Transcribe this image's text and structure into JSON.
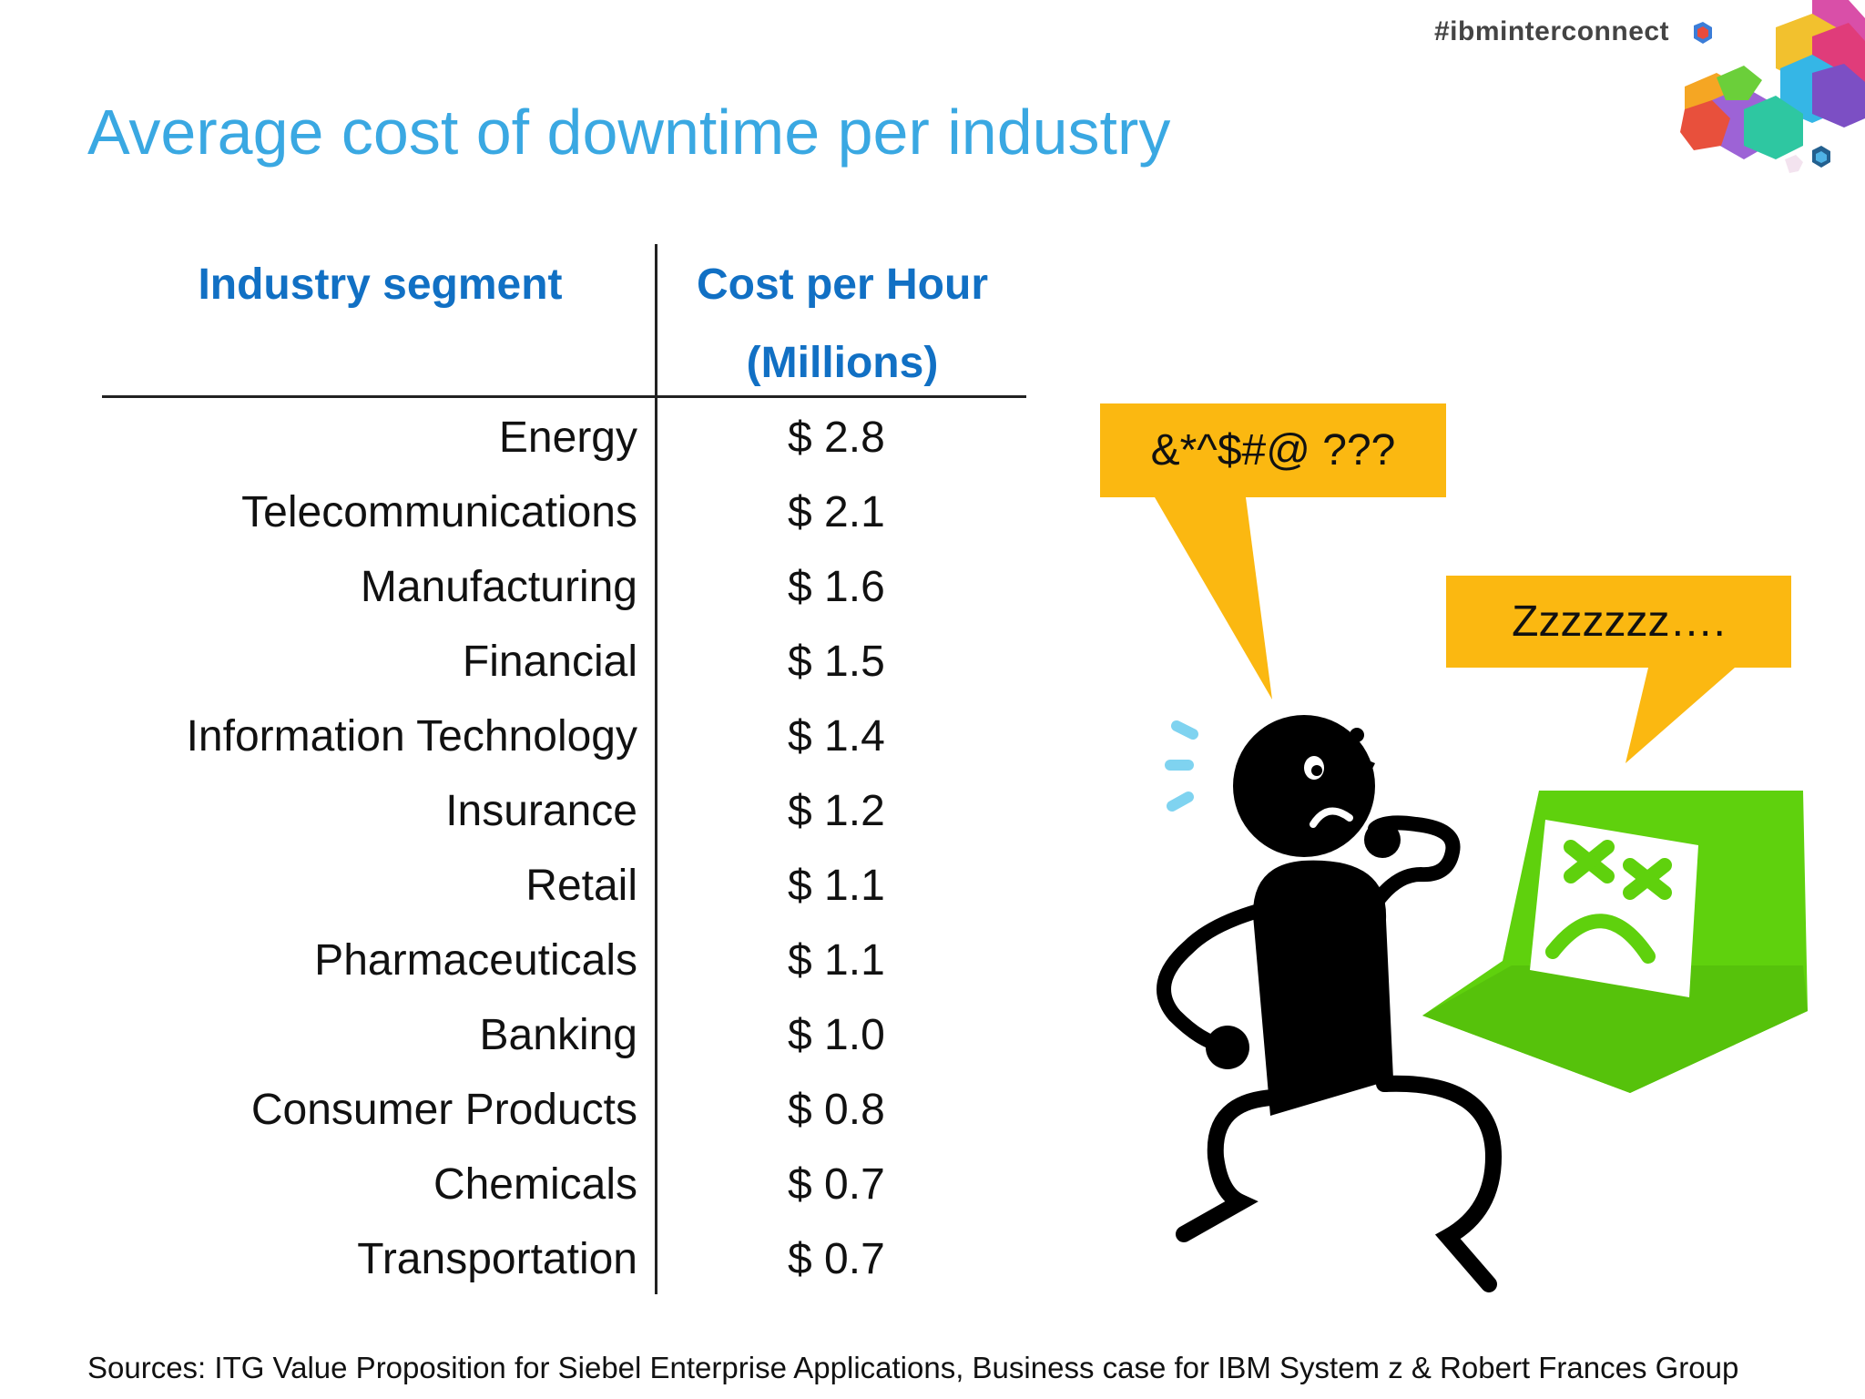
{
  "header": {
    "hashtag": "#ibminterconnect",
    "logo_icon": "hexagon-cluster-logo-icon"
  },
  "slide": {
    "title": "Average cost of downtime per industry"
  },
  "table": {
    "headers": {
      "industry": "Industry segment",
      "cost_line1": "Cost per Hour",
      "cost_line2": "(Millions)"
    },
    "rows": [
      {
        "segment": "Energy",
        "cost": "$ 2.8"
      },
      {
        "segment": "Telecommunications",
        "cost": "$ 2.1"
      },
      {
        "segment": "Manufacturing",
        "cost": "$ 1.6"
      },
      {
        "segment": "Financial",
        "cost": "$ 1.5"
      },
      {
        "segment": "Information Technology",
        "cost": "$ 1.4"
      },
      {
        "segment": "Insurance",
        "cost": "$ 1.2"
      },
      {
        "segment": "Retail",
        "cost": "$ 1.1"
      },
      {
        "segment": "Pharmaceuticals",
        "cost": "$ 1.1"
      },
      {
        "segment": "Banking",
        "cost": "$ 1.0"
      },
      {
        "segment": "Consumer Products",
        "cost": "$ 0.8"
      },
      {
        "segment": "Chemicals",
        "cost": "$ 0.7"
      },
      {
        "segment": "Transportation",
        "cost": "$ 0.7"
      }
    ]
  },
  "illustration": {
    "person_bubble": "&*^$#@ ???",
    "computer_bubble": "Zzzzzzz….",
    "person_icon": "confused-stick-figure-icon",
    "computer_icon": "sad-computer-icon",
    "colors": {
      "bubble": "#fbb811",
      "computer": "#5fd10d",
      "figure": "#000000",
      "motion_lines": "#7fd3f0"
    }
  },
  "footer": {
    "sources": "Sources: ITG Value Proposition for Siebel Enterprise Applications, Business case for IBM System z & Robert Frances Group"
  },
  "colors": {
    "title": "#3aa8e2",
    "table_header": "#1170c4"
  }
}
